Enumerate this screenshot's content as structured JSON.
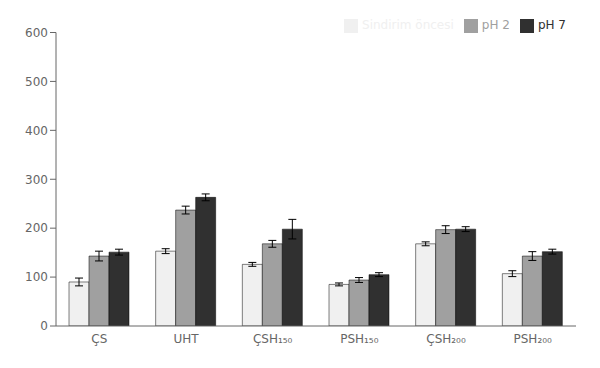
{
  "chart_data": {
    "type": "bar",
    "categories": [
      "ÇS",
      "UHT",
      "ÇSH₁₅₀",
      "PSH₁₅₀",
      "ÇSH₂₀₀",
      "PSH₂₀₀"
    ],
    "series": [
      {
        "name": "Sindirim öncesi",
        "color": "#f0f0f0",
        "values": [
          90,
          153,
          126,
          85,
          168,
          107
        ],
        "errors": [
          8,
          5,
          4,
          3,
          4,
          6
        ]
      },
      {
        "name": "pH 2",
        "color": "#a0a0a0",
        "values": [
          143,
          237,
          168,
          94,
          197,
          143
        ],
        "errors": [
          10,
          8,
          7,
          5,
          8,
          9
        ]
      },
      {
        "name": "pH 7",
        "color": "#303030",
        "values": [
          151,
          263,
          198,
          105,
          198,
          152
        ],
        "errors": [
          6,
          7,
          20,
          4,
          5,
          5
        ]
      }
    ],
    "ylim": [
      0,
      600
    ],
    "yticks": [
      0,
      100,
      200,
      300,
      400,
      500,
      600
    ],
    "grid": false,
    "legend": "upper right"
  }
}
